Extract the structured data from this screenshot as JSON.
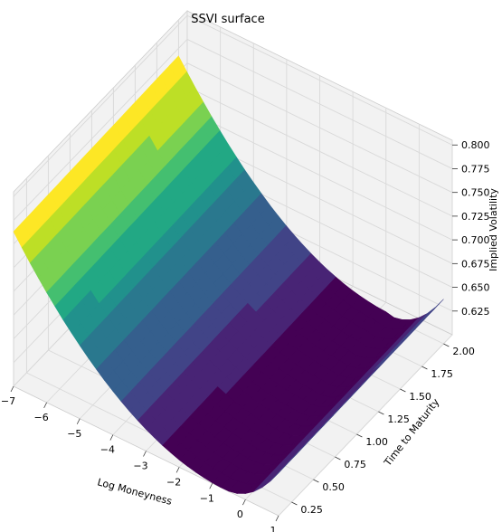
{
  "chart_data": {
    "type": "surface",
    "title": "SSVI surface",
    "xlabel": "Log Moneyness",
    "ylabel": "Time to Maturity",
    "zlabel": "Implied Volatility",
    "xlim": [
      -7,
      1
    ],
    "ylim": [
      0.1,
      2.1
    ],
    "zlim": [
      0.6,
      0.805
    ],
    "xticks": [
      "−7",
      "−6",
      "−5",
      "−4",
      "−3",
      "−2",
      "−1",
      "0",
      "1"
    ],
    "yticks": [
      "0.25",
      "0.50",
      "0.75",
      "1.00",
      "1.25",
      "1.50",
      "1.75",
      "2.00"
    ],
    "zticks": [
      "0.625",
      "0.650",
      "0.675",
      "0.700",
      "0.725",
      "0.750",
      "0.775",
      "0.800"
    ],
    "grid": true,
    "colormap": "viridis",
    "surface": {
      "x_range": [
        -7,
        1
      ],
      "t_range": [
        0.1,
        2.0
      ],
      "min_value": 0.6,
      "value_at_left_edge": 0.763,
      "value_at_right_front": 0.645,
      "minimum_log_moneyness": -0.6,
      "colormap_band_edges": [
        0.642,
        0.662
      ]
    },
    "colors": {
      "viridis": [
        "#440154",
        "#482475",
        "#414487",
        "#355f8d",
        "#2a788e",
        "#21918c",
        "#22a884",
        "#44bf70",
        "#7ad151",
        "#bddf26",
        "#fde725"
      ],
      "pane": "#f2f2f2",
      "grid": "#d9d9d9"
    }
  }
}
